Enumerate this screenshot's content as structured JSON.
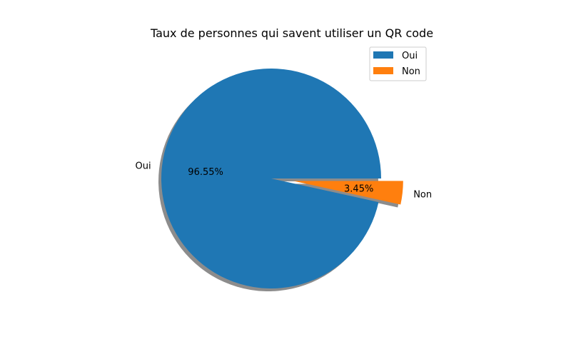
{
  "chart_data": {
    "type": "pie",
    "title": "Taux de personnes qui savent utiliser un QR code",
    "slices": [
      {
        "label": "Oui",
        "value": 96.55,
        "percent_label": "96.55%",
        "color": "#1f77b4",
        "exploded": false
      },
      {
        "label": "Non",
        "value": 3.45,
        "percent_label": "3.45%",
        "color": "#ff7f0e",
        "exploded": true
      }
    ],
    "shadow": true,
    "legend": {
      "placement": "upper-right",
      "entries": [
        "Oui",
        "Non"
      ]
    }
  }
}
